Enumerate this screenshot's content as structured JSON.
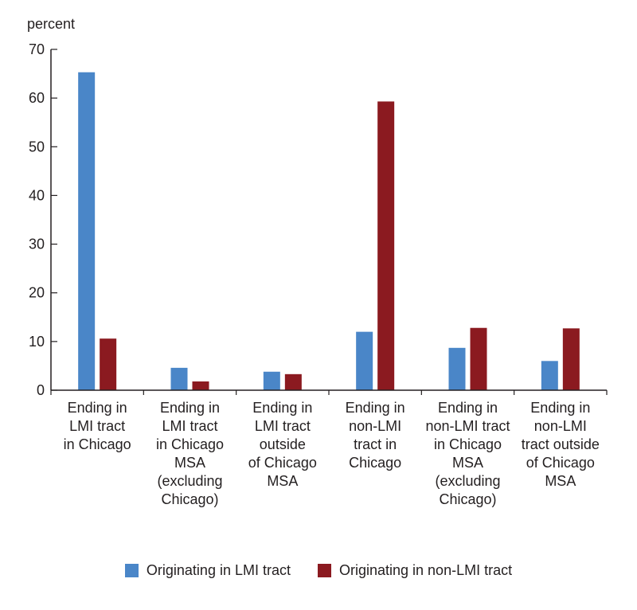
{
  "chart_data": {
    "type": "bar",
    "title": "",
    "xlabel": "",
    "ylabel": "percent",
    "ylim": [
      0,
      70
    ],
    "yticks": [
      0,
      10,
      20,
      30,
      40,
      50,
      60,
      70
    ],
    "grid": false,
    "legend_position": "bottom-center",
    "categories": [
      [
        "Ending in",
        "LMI tract",
        "in Chicago"
      ],
      [
        "Ending in",
        "LMI tract",
        "in Chicago",
        "MSA",
        "(excluding",
        "Chicago)"
      ],
      [
        "Ending in",
        "LMI tract",
        "outside",
        "of Chicago",
        "MSA"
      ],
      [
        "Ending in",
        "non-LMI",
        "tract in",
        "Chicago"
      ],
      [
        "Ending in",
        "non-LMI tract",
        "in Chicago",
        "MSA",
        "(excluding",
        "Chicago)"
      ],
      [
        "Ending in",
        "non-LMI",
        "tract outside",
        "of Chicago",
        "MSA"
      ]
    ],
    "series": [
      {
        "name": "Originating in LMI tract",
        "color": "#4a86c8",
        "values": [
          65.3,
          4.6,
          3.8,
          12.0,
          8.7,
          6.0
        ]
      },
      {
        "name": "Originating in non-LMI tract",
        "color": "#8b1a20",
        "values": [
          10.6,
          1.8,
          3.3,
          59.3,
          12.8,
          12.7
        ]
      }
    ]
  }
}
